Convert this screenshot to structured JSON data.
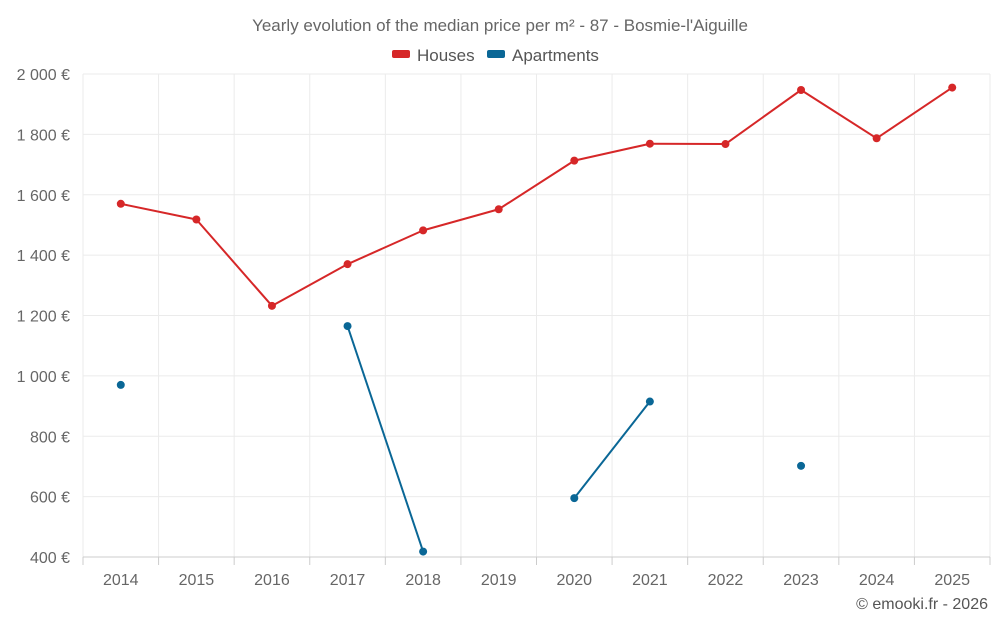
{
  "chart_data": {
    "type": "line",
    "title": "Yearly evolution of the median price per m² - 87 - Bosmie-l'Aiguille",
    "categories": [
      "2014",
      "2015",
      "2016",
      "2017",
      "2018",
      "2019",
      "2020",
      "2021",
      "2022",
      "2023",
      "2024",
      "2025"
    ],
    "ylim": [
      400,
      2000
    ],
    "yticks": [
      400,
      600,
      800,
      1000,
      1200,
      1400,
      1600,
      1800,
      2000
    ],
    "ytick_labels": [
      "400 €",
      "600 €",
      "800 €",
      "1 000 €",
      "1 200 €",
      "1 400 €",
      "1 600 €",
      "1 800 €",
      "2 000 €"
    ],
    "xlabel": "",
    "ylabel": "",
    "grid": true,
    "legend_position": "top-center",
    "series": [
      {
        "name": "Houses",
        "color": "#d62728",
        "values": [
          1570,
          1518,
          1232,
          1370,
          1482,
          1552,
          1713,
          1769,
          1768,
          1947,
          1787,
          1955
        ]
      },
      {
        "name": "Apartments",
        "color": "#0a6796",
        "values": [
          970,
          null,
          null,
          1165,
          418,
          null,
          595,
          915,
          null,
          702,
          null,
          null
        ]
      }
    ]
  },
  "credit": "© emooki.fr - 2026"
}
